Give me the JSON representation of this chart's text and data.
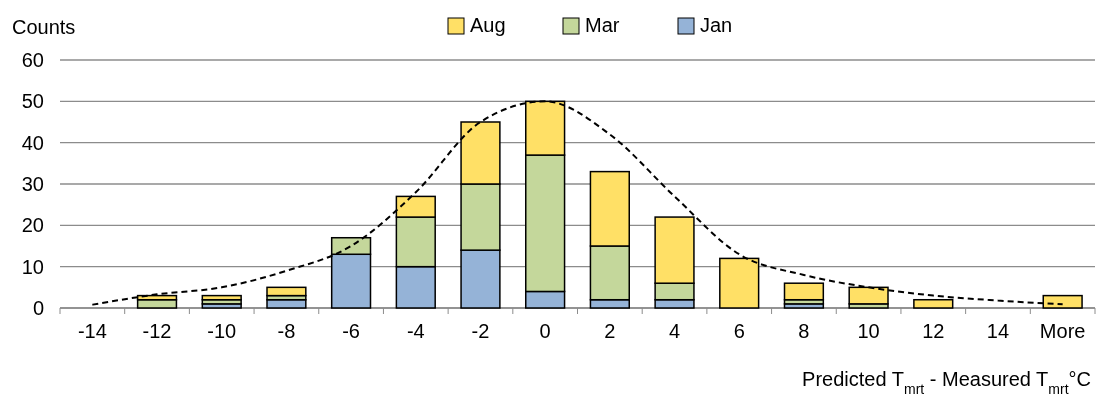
{
  "chart_data": {
    "type": "bar",
    "stacked": true,
    "ylabel": "Counts",
    "xlabel": "Predicted T$_{mrt}$ - Measured T$_{mrt}$°C",
    "categories": [
      "-14",
      "-12",
      "-10",
      "-8",
      "-6",
      "-4",
      "-2",
      "0",
      "2",
      "4",
      "6",
      "8",
      "10",
      "12",
      "14",
      "More"
    ],
    "series": [
      {
        "name": "Jan",
        "color": "#95b3d7",
        "values": [
          0,
          0,
          1,
          2,
          13,
          10,
          14,
          4,
          2,
          2,
          0,
          1,
          0,
          0,
          0,
          0
        ]
      },
      {
        "name": "Mar",
        "color": "#c4d79b",
        "values": [
          0,
          2,
          1,
          1,
          4,
          12,
          16,
          33,
          13,
          4,
          0,
          1,
          1,
          0,
          0,
          0
        ]
      },
      {
        "name": "Aug",
        "color": "#ffe066",
        "values": [
          0,
          1,
          1,
          2,
          0,
          5,
          15,
          13,
          18,
          16,
          12,
          4,
          4,
          2,
          0,
          3
        ]
      },
      {
        "type": "line",
        "color": "#000000",
        "line_style": "dashed",
        "values": [
          0.8,
          3.3,
          5,
          9,
          15,
          28,
          45,
          50,
          42,
          27,
          13,
          8,
          5,
          3,
          1.8,
          0.9
        ]
      }
    ],
    "ylim": [
      0,
      60
    ],
    "yticks": [
      0,
      10,
      20,
      30,
      40,
      50,
      60
    ],
    "grid": "y",
    "legend": "top"
  }
}
